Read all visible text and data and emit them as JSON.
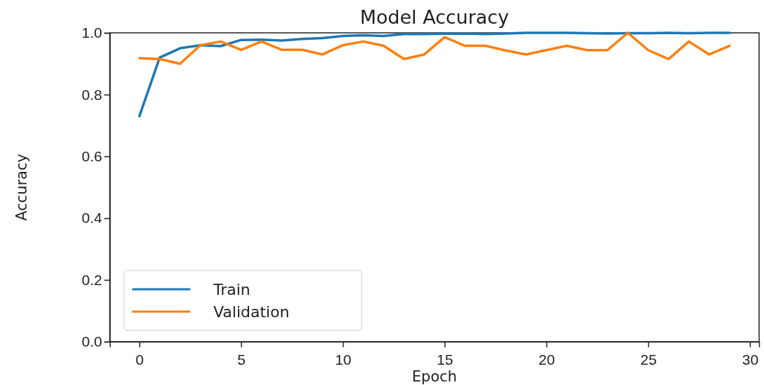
{
  "chart_data": {
    "type": "line",
    "title": "Model Accuracy",
    "xlabel": "Epoch",
    "ylabel": "Accuracy",
    "x": [
      0,
      1,
      2,
      3,
      4,
      5,
      6,
      7,
      8,
      9,
      10,
      11,
      12,
      13,
      14,
      15,
      16,
      17,
      18,
      19,
      20,
      21,
      22,
      23,
      24,
      25,
      26,
      27,
      28,
      29
    ],
    "series": [
      {
        "name": "Train",
        "color": "#1f77b4",
        "values": [
          0.73,
          0.92,
          0.95,
          0.96,
          0.957,
          0.977,
          0.978,
          0.975,
          0.98,
          0.983,
          0.99,
          0.992,
          0.99,
          0.996,
          0.996,
          0.997,
          0.998,
          0.996,
          0.998,
          1.0,
          1.0,
          1.0,
          0.999,
          0.998,
          0.999,
          0.999,
          1.0,
          0.999,
          1.0,
          1.0
        ]
      },
      {
        "name": "Validation",
        "color": "#ff7f0e",
        "values": [
          0.918,
          0.915,
          0.9,
          0.96,
          0.972,
          0.945,
          0.972,
          0.945,
          0.945,
          0.93,
          0.96,
          0.972,
          0.958,
          0.915,
          0.93,
          0.986,
          0.958,
          0.958,
          0.943,
          0.93,
          0.944,
          0.958,
          0.944,
          0.944,
          1.0,
          0.944,
          0.915,
          0.972,
          0.93,
          0.958
        ]
      }
    ],
    "xlim": [
      -1.45,
      30.45
    ],
    "xticks": [
      0,
      5,
      10,
      15,
      20,
      25,
      30
    ],
    "ylim": [
      0,
      1.0
    ],
    "yticks": [
      {
        "value": 0,
        "label": "0.0"
      },
      {
        "value": 0.2,
        "label": "0.2"
      },
      {
        "value": 0.4,
        "label": "0.4"
      },
      {
        "value": 0.6,
        "label": "0.6"
      },
      {
        "value": 0.8,
        "label": "0.8"
      },
      {
        "value": 1.0,
        "label": "1.0"
      }
    ],
    "legend": "bottom left",
    "grid": false,
    "marker": "none",
    "line_style": "solid"
  }
}
